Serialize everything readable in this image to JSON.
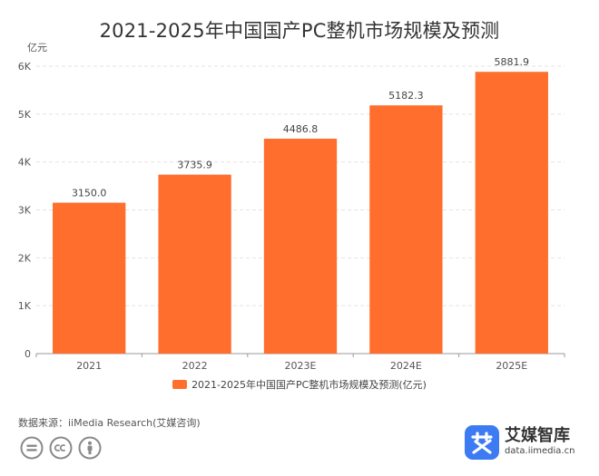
{
  "title": "2021-2025年中国国产PC整机市场规模及预测",
  "source_text": "数据来源：iiMedia Research(艾媒咨询)",
  "brand": {
    "name": "艾媒智库",
    "url": "data.iimedia.cn"
  },
  "license_icons": [
    "equals-icon",
    "cc-icon",
    "person-icon"
  ],
  "colors": {
    "bar": "#FF6E2C",
    "grid": "#E3E3E3",
    "axis": "#9A9A9A",
    "brand_mark": "#3D7BF2"
  },
  "chart_data": {
    "type": "bar",
    "title": "2021-2025年中国国产PC整机市场规模及预测",
    "ylabel": "亿元",
    "xlabel": "",
    "categories": [
      "2021",
      "2022",
      "2023E",
      "2024E",
      "2025E"
    ],
    "series": [
      {
        "name": "2021-2025年中国国产PC整机市场规模及预测(亿元)",
        "values": [
          3150.0,
          3735.9,
          4486.8,
          5182.3,
          5881.9
        ],
        "labels": [
          "3150.0",
          "3735.9",
          "4486.8",
          "5182.3",
          "5881.9"
        ]
      }
    ],
    "ylim": [
      0,
      6000
    ],
    "yticks": [
      0,
      1000,
      2000,
      3000,
      4000,
      5000,
      6000
    ],
    "ytick_labels": [
      "0",
      "1K",
      "2K",
      "3K",
      "4K",
      "5K",
      "6K"
    ],
    "grid": true,
    "legend_position": "bottom"
  }
}
